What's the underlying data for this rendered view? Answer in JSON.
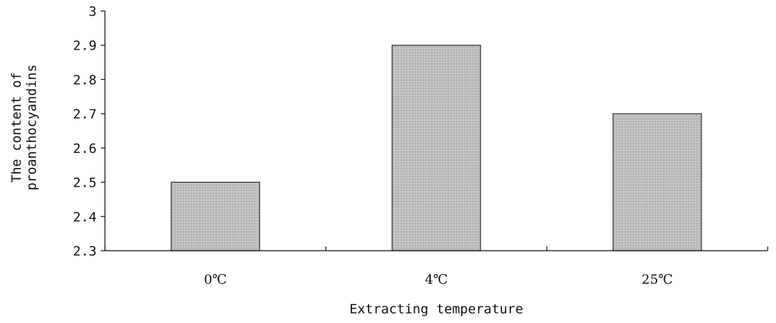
{
  "chart_data": {
    "type": "bar",
    "categories": [
      "0℃",
      "4℃",
      "25℃"
    ],
    "values": [
      2.5,
      2.9,
      2.7
    ],
    "title": "",
    "xlabel": "Extracting temperature",
    "ylabel_lines": [
      "The content of",
      "proanthocyandins"
    ],
    "ylim": [
      2.3,
      3.0
    ],
    "yticks": [
      "2.3",
      "2.4",
      "2.5",
      "2.6",
      "2.7",
      "2.8",
      "2.9",
      "3"
    ],
    "grid": false,
    "legend": "none",
    "bar_color": "#b9b9b9"
  }
}
